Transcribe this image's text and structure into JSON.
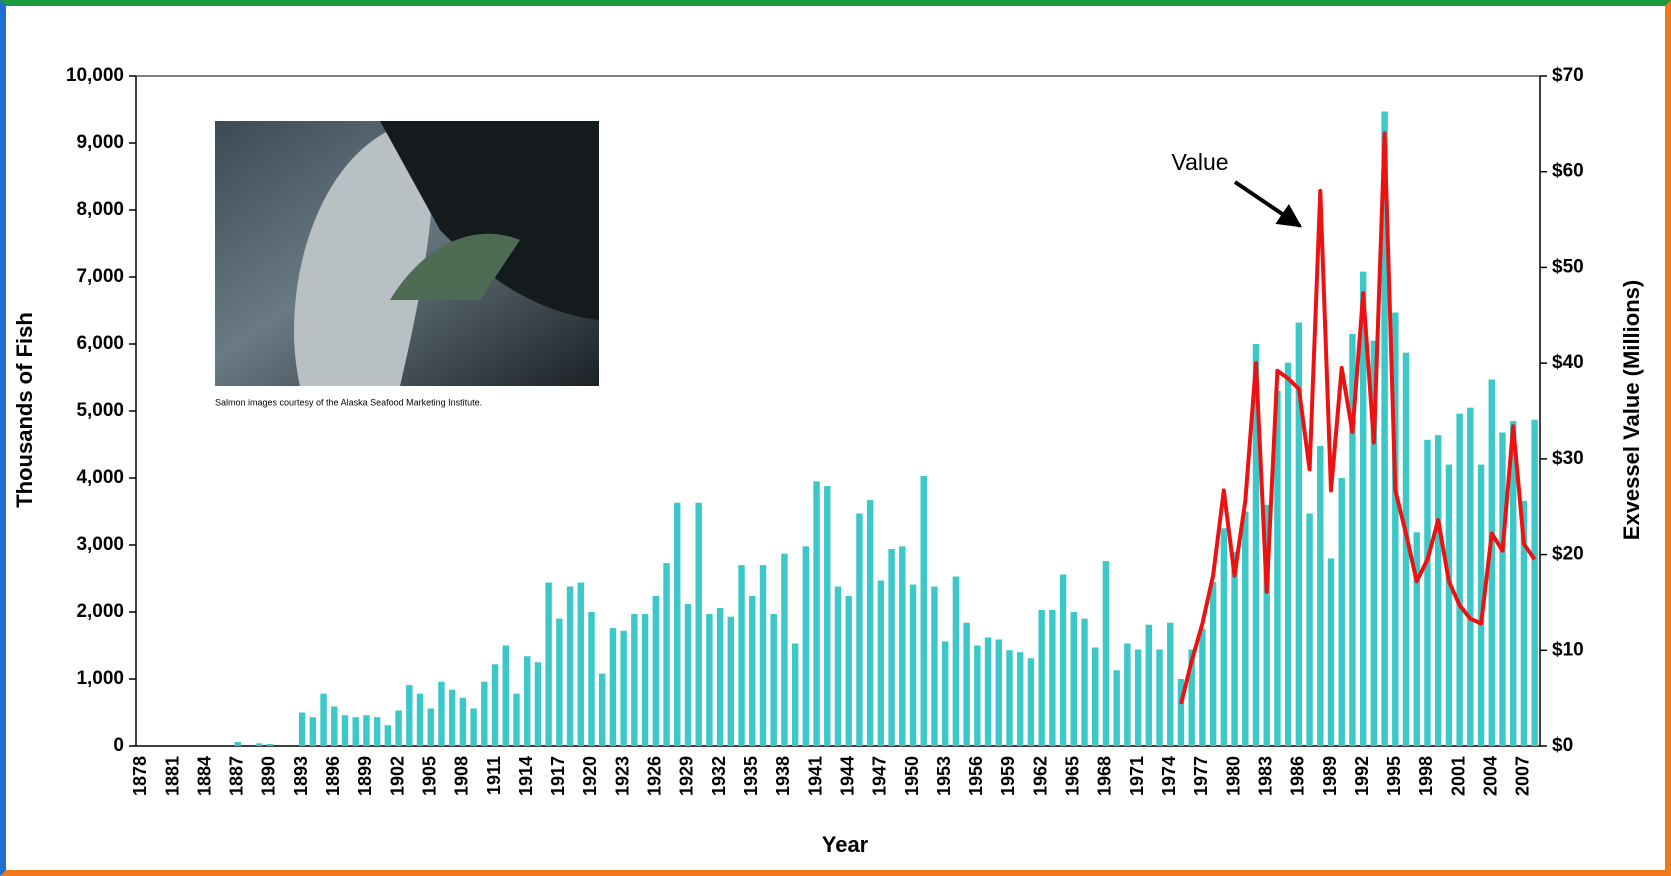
{
  "chart_data": {
    "type": "bar",
    "xlabel": "Year",
    "ylabel": "Thousands of Fish",
    "y2label": "Exvessel Value (Millions)",
    "annotations": [
      "Value",
      "Salmon images courtesy of the Alaska Seafood Marketing Institute."
    ],
    "categories": [
      "1878",
      null,
      null,
      "1881",
      null,
      null,
      "1884",
      null,
      null,
      "1887",
      null,
      null,
      "1890",
      null,
      null,
      "1893",
      null,
      null,
      "1896",
      null,
      null,
      "1899",
      null,
      null,
      "1902",
      null,
      null,
      "1905",
      null,
      null,
      "1908",
      null,
      null,
      "1911",
      null,
      null,
      "1914",
      null,
      null,
      "1917",
      null,
      null,
      "1920",
      null,
      null,
      "1923",
      null,
      null,
      "1926",
      null,
      null,
      "1929",
      null,
      null,
      "1932",
      null,
      null,
      "1935",
      null,
      null,
      "1938",
      null,
      null,
      "1941",
      null,
      null,
      "1944",
      null,
      null,
      "1947",
      null,
      null,
      "1950",
      null,
      null,
      "1953",
      null,
      null,
      "1956",
      null,
      null,
      "1959",
      null,
      null,
      "1962",
      null,
      null,
      "1965",
      null,
      null,
      "1968",
      null,
      null,
      "1971",
      null,
      null,
      "1974",
      null,
      null,
      "1977",
      null,
      null,
      "1980",
      null,
      null,
      "1983",
      null,
      null,
      "1986",
      null,
      null,
      "1989",
      null,
      null,
      "1992",
      null,
      null,
      "1995",
      null,
      null,
      "1998",
      null,
      null,
      "2001",
      null,
      null,
      "2004",
      null,
      null,
      "2007",
      null
    ],
    "series": [
      {
        "color": "#3cc8c8",
        "values": [
          0,
          0,
          0,
          0,
          0,
          0,
          0,
          0,
          0,
          60,
          0,
          40,
          30,
          0,
          0,
          500,
          430,
          780,
          590,
          460,
          430,
          460,
          430,
          310,
          530,
          910,
          780,
          560,
          960,
          840,
          720,
          560,
          960,
          1220,
          1500,
          780,
          1340,
          1250,
          2440,
          1900,
          2380,
          2440,
          2000,
          1080,
          1760,
          1720,
          1970,
          1970,
          2240,
          2730,
          3630,
          2120,
          3630,
          1970,
          2060,
          1930,
          2700,
          2240,
          2700,
          1970,
          2870,
          1530,
          2980,
          3950,
          3880,
          2380,
          2240,
          3470,
          3670,
          2470,
          2940,
          2980,
          2410,
          4030,
          2380,
          1560,
          2530,
          1840,
          1500,
          1620,
          1590,
          1430,
          1400,
          1310,
          2030,
          2030,
          2560,
          2000,
          1900,
          1470,
          2760,
          1130,
          1530,
          1440,
          1810,
          1440,
          1840,
          1000,
          1440,
          1750,
          2450,
          3250,
          2900,
          3500,
          6000,
          3600,
          5300,
          5720,
          6320,
          3470,
          4480,
          2800,
          4000,
          6150,
          7080,
          6050,
          9470,
          6470,
          5870,
          3190,
          4570,
          4640,
          4200,
          4960,
          5050,
          4200,
          5470,
          4680,
          4850,
          3660,
          4870
        ]
      },
      {
        "type": "line",
        "axis": "y2",
        "color": "#ee1111",
        "values": [
          null,
          null,
          null,
          null,
          null,
          null,
          null,
          null,
          null,
          null,
          null,
          null,
          null,
          null,
          null,
          null,
          null,
          null,
          null,
          null,
          null,
          null,
          null,
          null,
          null,
          null,
          null,
          null,
          null,
          null,
          null,
          null,
          null,
          null,
          null,
          null,
          null,
          null,
          null,
          null,
          null,
          null,
          null,
          null,
          null,
          null,
          null,
          null,
          null,
          null,
          null,
          null,
          null,
          null,
          null,
          null,
          null,
          null,
          null,
          null,
          null,
          null,
          null,
          null,
          null,
          null,
          null,
          null,
          null,
          null,
          null,
          null,
          null,
          null,
          null,
          null,
          null,
          null,
          null,
          null,
          null,
          null,
          null,
          null,
          null,
          null,
          null,
          null,
          null,
          null,
          null,
          null,
          null,
          null,
          null,
          null,
          null,
          4.4,
          8.9,
          12.8,
          17.8,
          26.7,
          17.8,
          25.6,
          40,
          16.1,
          39.2,
          38.4,
          37.3,
          28.9,
          58,
          26.7,
          39.5,
          32.8,
          47.3,
          31.7,
          64,
          26.7,
          22.2,
          17.2,
          19.5,
          23.6,
          17.2,
          14.7,
          13.3,
          12.8,
          22.2,
          20.4,
          33.4,
          21.1,
          19.5
        ]
      }
    ],
    "ylim": [
      0,
      10000
    ],
    "yticks": [
      0,
      {
        "value": 1000,
        "label": "1,000"
      },
      {
        "value": 2000,
        "label": "2,000"
      },
      {
        "value": 3000,
        "label": "3,000"
      },
      {
        "value": 4000,
        "label": "4,000"
      },
      {
        "value": 5000,
        "label": "5,000"
      },
      {
        "value": 6000,
        "label": "6,000"
      },
      {
        "value": 7000,
        "label": "7,000"
      },
      {
        "value": 8000,
        "label": "8,000"
      },
      {
        "value": 9000,
        "label": "9,000"
      },
      {
        "value": 10000,
        "label": "10,000"
      }
    ],
    "y2lim": [
      0,
      70
    ],
    "y2ticks": [
      {
        "value": 0,
        "label": "$0"
      },
      {
        "value": 10,
        "label": "$10"
      },
      {
        "value": 20,
        "label": "$20"
      },
      {
        "value": 30,
        "label": "$30"
      },
      {
        "value": 40,
        "label": "$40"
      },
      {
        "value": 50,
        "label": "$50"
      },
      {
        "value": 60,
        "label": "$60"
      },
      {
        "value": 70,
        "label": "$70"
      }
    ],
    "grid": false
  }
}
